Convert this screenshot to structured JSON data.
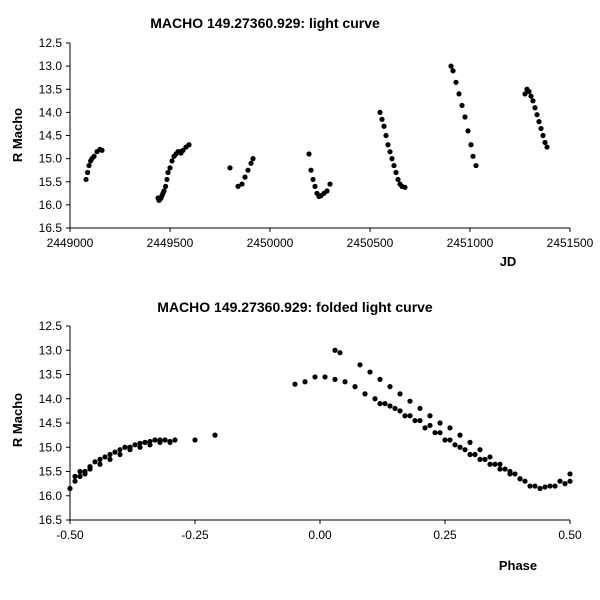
{
  "chart_data": [
    {
      "type": "scatter",
      "title": "MACHO 149.27360.929: light curve",
      "xlabel": "JD",
      "ylabel": "R Macho",
      "xlim": [
        2449000,
        2451500
      ],
      "ylim": [
        12.5,
        16.5
      ],
      "y_inverted": true,
      "grid": false,
      "x_ticks": [
        "2449000",
        "2449500",
        "2450000",
        "2450500",
        "2451000",
        "2451500"
      ],
      "y_ticks": [
        "12.5",
        "13.0",
        "13.5",
        "14.0",
        "14.5",
        "15.0",
        "15.5",
        "16.0",
        "16.5"
      ],
      "marker_color": "#000000",
      "series": [
        {
          "x": [
            2449080,
            2449088,
            2449095,
            2449103,
            2449110,
            2449120,
            2449135,
            2449150,
            2449160,
            2449440,
            2449445,
            2449450,
            2449455,
            2449460,
            2449465,
            2449470,
            2449478,
            2449485,
            2449490,
            2449500,
            2449510,
            2449520,
            2449530,
            2449540,
            2449548,
            2449555,
            2449565,
            2449580,
            2449595,
            2449800,
            2449840,
            2449860,
            2449875,
            2449890,
            2449905,
            2449915,
            2450195,
            2450205,
            2450215,
            2450225,
            2450235,
            2450245,
            2450255,
            2450270,
            2450285,
            2450300,
            2450550,
            2450560,
            2450570,
            2450580,
            2450590,
            2450600,
            2450610,
            2450620,
            2450630,
            2450640,
            2450650,
            2450660,
            2450675,
            2450905,
            2450915,
            2450930,
            2450945,
            2450960,
            2450975,
            2450990,
            2451005,
            2451015,
            2451030,
            2451275,
            2451285,
            2451295,
            2451305,
            2451315,
            2451325,
            2451335,
            2451345,
            2451355,
            2451365,
            2451375,
            2451385
          ],
          "y": [
            15.45,
            15.3,
            15.15,
            15.05,
            15.0,
            14.95,
            14.85,
            14.8,
            14.82,
            15.85,
            15.9,
            15.88,
            15.85,
            15.8,
            15.75,
            15.7,
            15.6,
            15.45,
            15.3,
            15.2,
            15.05,
            14.95,
            14.9,
            14.85,
            14.85,
            14.88,
            14.82,
            14.75,
            14.7,
            15.2,
            15.6,
            15.55,
            15.4,
            15.25,
            15.1,
            15.0,
            14.9,
            15.25,
            15.45,
            15.6,
            15.75,
            15.82,
            15.8,
            15.75,
            15.7,
            15.55,
            14.0,
            14.15,
            14.3,
            14.5,
            14.7,
            14.85,
            15.0,
            15.15,
            15.3,
            15.45,
            15.55,
            15.6,
            15.62,
            13.0,
            13.1,
            13.35,
            13.6,
            13.85,
            14.1,
            14.4,
            14.7,
            14.95,
            15.15,
            13.6,
            13.5,
            13.55,
            13.65,
            13.75,
            13.9,
            14.05,
            14.2,
            14.35,
            14.5,
            14.65,
            14.75
          ]
        }
      ]
    },
    {
      "type": "scatter",
      "title": "MACHO 149.27360.929: folded light curve",
      "xlabel": "Phase",
      "ylabel": "R Macho",
      "xlim": [
        -0.5,
        0.5
      ],
      "ylim": [
        12.5,
        16.5
      ],
      "y_inverted": true,
      "grid": false,
      "x_ticks": [
        "-0.50",
        "-0.25",
        "0.00",
        "0.25",
        "0.50"
      ],
      "y_ticks": [
        "12.5",
        "13.0",
        "13.5",
        "14.0",
        "14.5",
        "15.0",
        "15.5",
        "16.0",
        "16.5"
      ],
      "marker_color": "#000000",
      "series": [
        {
          "x": [
            -0.5,
            -0.49,
            -0.48,
            -0.47,
            -0.46,
            -0.45,
            -0.44,
            -0.43,
            -0.42,
            -0.41,
            -0.4,
            -0.39,
            -0.38,
            -0.37,
            -0.36,
            -0.35,
            -0.34,
            -0.33,
            -0.32,
            -0.31,
            -0.3,
            -0.29,
            -0.25,
            -0.21,
            -0.48,
            -0.46,
            -0.44,
            -0.42,
            -0.4,
            -0.38,
            -0.36,
            -0.34,
            -0.32,
            -0.3,
            -0.49,
            -0.47,
            -0.05,
            -0.03,
            -0.01,
            0.01,
            0.03,
            0.05,
            0.07,
            0.09,
            0.11,
            0.13,
            0.15,
            0.17,
            0.19,
            0.21,
            0.23,
            0.25,
            0.27,
            0.29,
            0.31,
            0.33,
            0.35,
            0.37,
            0.39,
            0.41,
            0.43,
            0.45,
            0.47,
            0.49,
            0.5,
            0.03,
            0.04,
            0.08,
            0.1,
            0.12,
            0.14,
            0.16,
            0.18,
            0.2,
            0.22,
            0.24,
            0.26,
            0.28,
            0.3,
            0.32,
            0.34,
            0.36,
            0.38,
            0.4,
            0.42,
            0.44,
            0.46,
            0.48,
            0.5,
            0.12,
            0.14,
            0.16,
            0.18,
            0.2,
            0.22,
            0.24,
            0.26,
            0.28,
            0.3,
            0.32,
            0.34,
            0.36,
            0.38,
            0.4
          ],
          "y": [
            15.85,
            15.7,
            15.6,
            15.5,
            15.4,
            15.3,
            15.25,
            15.2,
            15.15,
            15.1,
            15.05,
            15.0,
            15.0,
            14.95,
            14.92,
            14.9,
            14.88,
            14.85,
            14.85,
            14.85,
            14.88,
            14.85,
            14.85,
            14.75,
            15.5,
            15.45,
            15.35,
            15.25,
            15.15,
            15.05,
            15.0,
            14.95,
            14.9,
            14.9,
            15.6,
            15.55,
            13.7,
            13.65,
            13.55,
            13.55,
            13.6,
            13.65,
            13.75,
            13.9,
            14.0,
            14.1,
            14.2,
            14.35,
            14.45,
            14.6,
            14.7,
            14.85,
            14.95,
            15.05,
            15.15,
            15.25,
            15.35,
            15.45,
            15.55,
            15.7,
            15.8,
            15.82,
            15.8,
            15.75,
            15.7,
            13.0,
            13.05,
            13.3,
            13.45,
            13.6,
            13.75,
            13.9,
            14.05,
            14.2,
            14.35,
            14.5,
            14.6,
            14.75,
            14.9,
            15.05,
            15.2,
            15.35,
            15.5,
            15.65,
            15.8,
            15.85,
            15.8,
            15.7,
            15.55,
            14.1,
            14.15,
            14.25,
            14.35,
            14.45,
            14.55,
            14.7,
            14.85,
            15.0,
            15.15,
            15.25,
            15.35,
            15.45,
            15.55,
            15.65
          ]
        }
      ]
    }
  ]
}
